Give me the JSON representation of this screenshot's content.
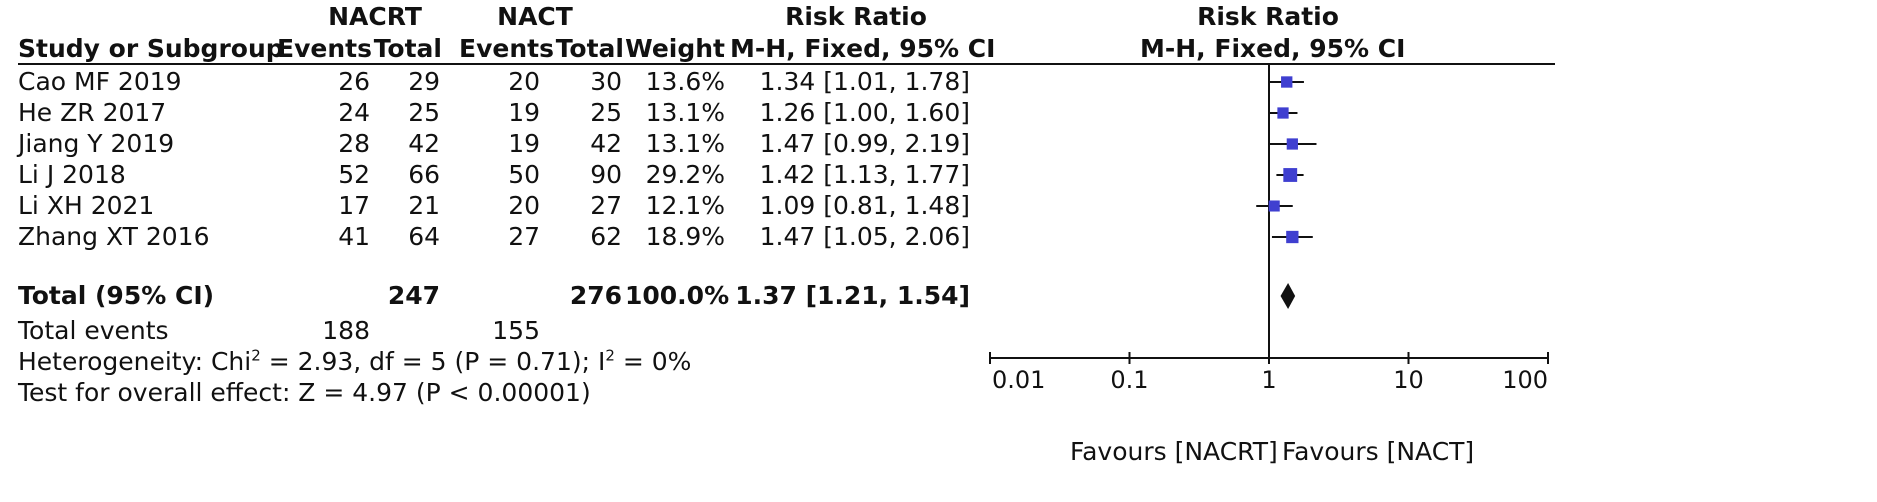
{
  "headers": {
    "nacrt": "NACRT",
    "nact": "NACT",
    "risk_ratio": "Risk Ratio",
    "plot_risk_ratio": "Risk Ratio",
    "study": "Study or Subgroup",
    "events1": "Events",
    "total1": "Total",
    "events2": "Events",
    "total2": "Total",
    "weight": "Weight",
    "method": "M-H, Fixed, 95% CI",
    "plot_method": "M-H, Fixed, 95% CI"
  },
  "studies": [
    {
      "name": "Cao MF 2019",
      "e1": "26",
      "t1": "29",
      "e2": "20",
      "t2": "30",
      "weight": "13.6%",
      "ci": "1.34 [1.01, 1.78]"
    },
    {
      "name": "He ZR 2017",
      "e1": "24",
      "t1": "25",
      "e2": "19",
      "t2": "25",
      "weight": "13.1%",
      "ci": "1.26 [1.00, 1.60]"
    },
    {
      "name": "Jiang Y 2019",
      "e1": "28",
      "t1": "42",
      "e2": "19",
      "t2": "42",
      "weight": "13.1%",
      "ci": "1.47 [0.99, 2.19]"
    },
    {
      "name": "Li J 2018",
      "e1": "52",
      "t1": "66",
      "e2": "50",
      "t2": "90",
      "weight": "29.2%",
      "ci": "1.42 [1.13, 1.77]"
    },
    {
      "name": "Li XH 2021",
      "e1": "17",
      "t1": "21",
      "e2": "20",
      "t2": "27",
      "weight": "12.1%",
      "ci": "1.09 [0.81, 1.48]"
    },
    {
      "name": "Zhang XT 2016",
      "e1": "41",
      "t1": "64",
      "e2": "27",
      "t2": "62",
      "weight": "18.9%",
      "ci": "1.47 [1.05, 2.06]"
    }
  ],
  "total": {
    "label": "Total (95% CI)",
    "t1": "247",
    "t2": "276",
    "weight": "100.0%",
    "ci": "1.37 [1.21, 1.54]"
  },
  "total_events": {
    "label": "Total events",
    "e1": "188",
    "e2": "155"
  },
  "heterogeneity": {
    "a": "Heterogeneity: Chi",
    "sup1": "2",
    "b": " = 2.93, df = 5 (P = 0.71); I",
    "sup2": "2",
    "c": " = 0%"
  },
  "overall_effect": "Test for overall effect: Z = 4.97 (P < 0.00001)",
  "favours_left": "Favours [NACRT]",
  "favours_right": "Favours [NACT]",
  "chart_data": {
    "type": "scatter",
    "title": "Risk Ratio",
    "subtitle": "M-H, Fixed, 95% CI",
    "x_scale": "log",
    "xlim": [
      0.01,
      100
    ],
    "x_ticks": [
      "0.01",
      "0.1",
      "1",
      "10",
      "100"
    ],
    "reference_line": 1,
    "marker_color": "#3f3fd0",
    "series": [
      {
        "study": "Cao MF 2019",
        "rr": 1.34,
        "lo": 1.01,
        "hi": 1.78,
        "weight": 13.6
      },
      {
        "study": "He ZR 2017",
        "rr": 1.26,
        "lo": 1.0,
        "hi": 1.6,
        "weight": 13.1
      },
      {
        "study": "Jiang Y 2019",
        "rr": 1.47,
        "lo": 0.99,
        "hi": 2.19,
        "weight": 13.1
      },
      {
        "study": "Li J 2018",
        "rr": 1.42,
        "lo": 1.13,
        "hi": 1.77,
        "weight": 29.2
      },
      {
        "study": "Li XH 2021",
        "rr": 1.09,
        "lo": 0.81,
        "hi": 1.48,
        "weight": 12.1
      },
      {
        "study": "Zhang XT 2016",
        "rr": 1.47,
        "lo": 1.05,
        "hi": 2.06,
        "weight": 18.9
      }
    ],
    "pooled": {
      "rr": 1.37,
      "lo": 1.21,
      "hi": 1.54
    }
  }
}
